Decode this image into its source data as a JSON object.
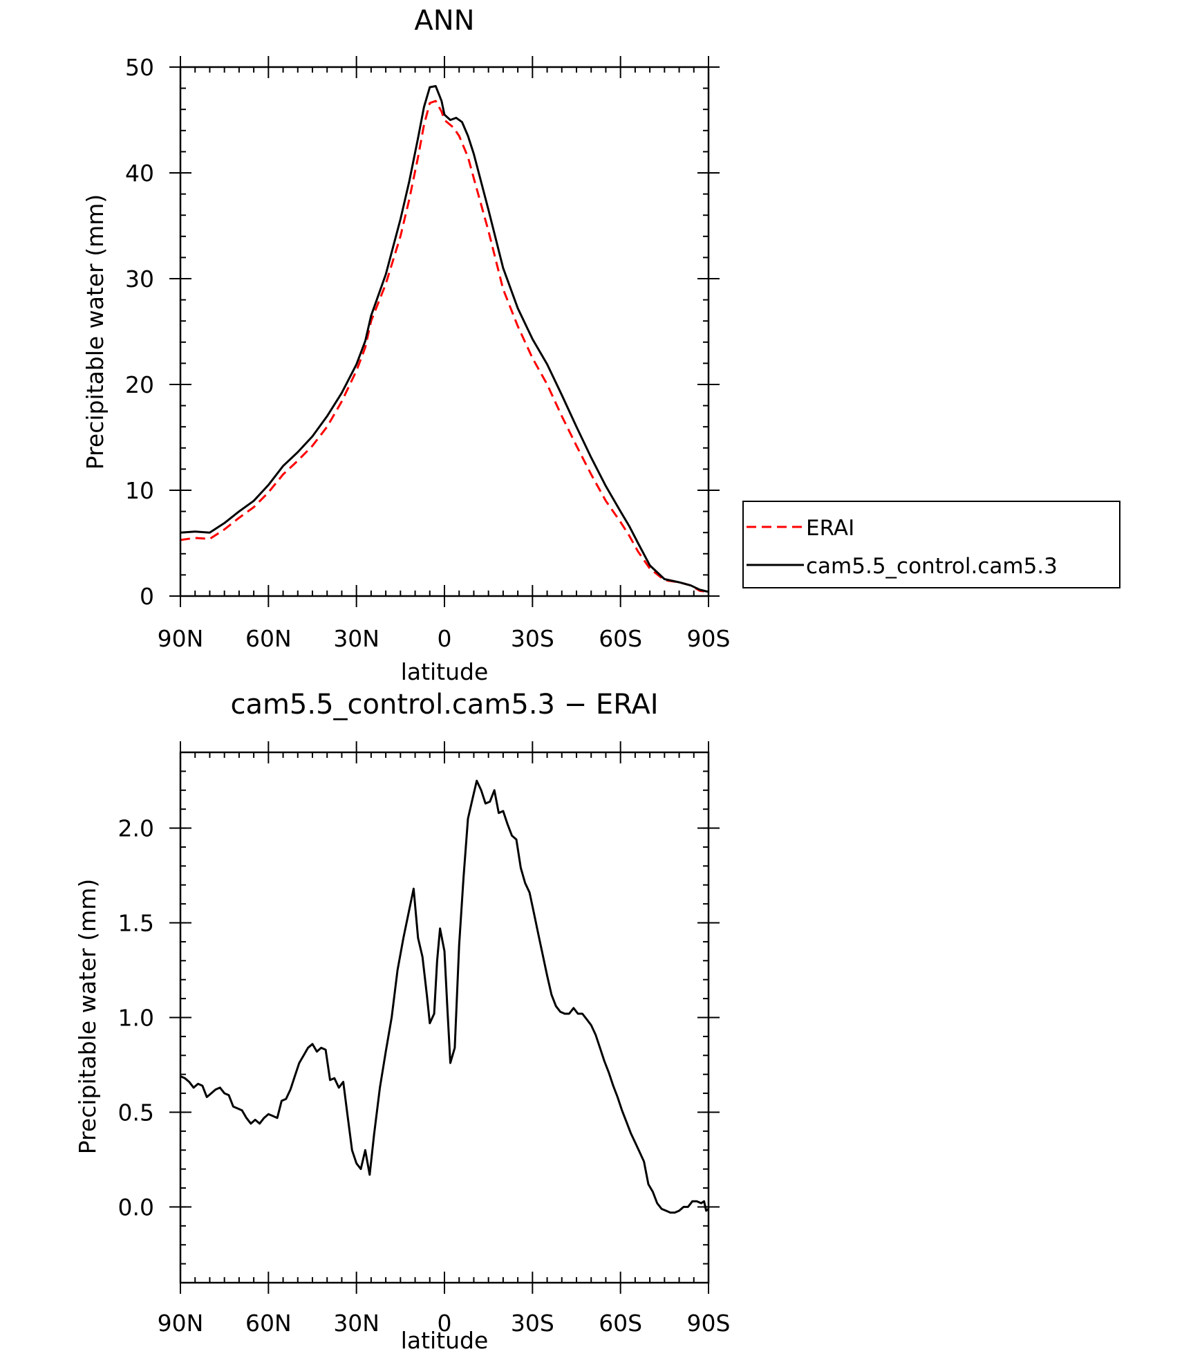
{
  "chart_data": [
    {
      "type": "line",
      "title": "ANN",
      "xlabel": "latitude",
      "ylabel": "Precipitable water (mm)",
      "xlim": [
        90,
        -90
      ],
      "ylim": [
        0,
        50
      ],
      "x_ticks": [
        90,
        60,
        30,
        0,
        -30,
        -60,
        -90
      ],
      "x_tick_labels": [
        "90N",
        "60N",
        "30N",
        "0",
        "30S",
        "60S",
        "90S"
      ],
      "y_ticks": [
        0,
        10,
        20,
        30,
        40,
        50
      ],
      "y_tick_labels": [
        "0",
        "10",
        "20",
        "30",
        "40",
        "50"
      ],
      "legend_position": "right",
      "series": [
        {
          "name": "ERAI",
          "color": "#ff0000",
          "style": "dashed",
          "points": [
            [
              90,
              5.3
            ],
            [
              85,
              5.5
            ],
            [
              80,
              5.4
            ],
            [
              75,
              6.3
            ],
            [
              70,
              7.4
            ],
            [
              65,
              8.4
            ],
            [
              60,
              9.8
            ],
            [
              55,
              11.5
            ],
            [
              50,
              12.8
            ],
            [
              45,
              14.2
            ],
            [
              40,
              16.0
            ],
            [
              35,
              18.4
            ],
            [
              30,
              21.3
            ],
            [
              27,
              23.5
            ],
            [
              25,
              26.0
            ],
            [
              20,
              29.5
            ],
            [
              15,
              34.0
            ],
            [
              12,
              37.5
            ],
            [
              9,
              41.5
            ],
            [
              7,
              44.5
            ],
            [
              5,
              46.6
            ],
            [
              3,
              46.8
            ],
            [
              1,
              45.8
            ],
            [
              0,
              45.0
            ],
            [
              -3,
              44.3
            ],
            [
              -5,
              43.5
            ],
            [
              -8,
              41.5
            ],
            [
              -10,
              39.5
            ],
            [
              -15,
              34.5
            ],
            [
              -20,
              29.0
            ],
            [
              -25,
              25.5
            ],
            [
              -30,
              22.5
            ],
            [
              -35,
              20.0
            ],
            [
              -40,
              17.0
            ],
            [
              -45,
              14.2
            ],
            [
              -50,
              11.5
            ],
            [
              -55,
              9.0
            ],
            [
              -60,
              7.0
            ],
            [
              -63,
              5.7
            ],
            [
              -66,
              4.2
            ],
            [
              -70,
              2.6
            ],
            [
              -75,
              1.5
            ],
            [
              -80,
              1.3
            ],
            [
              -84,
              1.0
            ],
            [
              -87,
              0.5
            ],
            [
              -90,
              0.4
            ]
          ]
        },
        {
          "name": "cam5.5_control.cam5.3",
          "color": "#000000",
          "style": "solid",
          "points": [
            [
              90,
              6.0
            ],
            [
              85,
              6.1
            ],
            [
              80,
              6.0
            ],
            [
              75,
              6.9
            ],
            [
              70,
              8.0
            ],
            [
              65,
              9.0
            ],
            [
              60,
              10.5
            ],
            [
              55,
              12.3
            ],
            [
              50,
              13.6
            ],
            [
              45,
              15.1
            ],
            [
              40,
              17.0
            ],
            [
              35,
              19.2
            ],
            [
              30,
              21.9
            ],
            [
              27,
              24.1
            ],
            [
              25,
              26.5
            ],
            [
              20,
              30.4
            ],
            [
              15,
              35.6
            ],
            [
              12,
              39.2
            ],
            [
              9,
              43.3
            ],
            [
              7,
              46.2
            ],
            [
              5,
              48.1
            ],
            [
              3,
              48.2
            ],
            [
              1,
              46.8
            ],
            [
              0,
              45.5
            ],
            [
              -2,
              45.0
            ],
            [
              -4,
              45.2
            ],
            [
              -6,
              44.8
            ],
            [
              -8,
              43.5
            ],
            [
              -10,
              41.8
            ],
            [
              -15,
              36.5
            ],
            [
              -20,
              31.0
            ],
            [
              -25,
              27.2
            ],
            [
              -30,
              24.3
            ],
            [
              -35,
              21.9
            ],
            [
              -40,
              19.0
            ],
            [
              -45,
              16.0
            ],
            [
              -50,
              13.1
            ],
            [
              -55,
              10.4
            ],
            [
              -60,
              8.0
            ],
            [
              -63,
              6.6
            ],
            [
              -66,
              5.0
            ],
            [
              -70,
              2.9
            ],
            [
              -75,
              1.6
            ],
            [
              -80,
              1.3
            ],
            [
              -84,
              1.0
            ],
            [
              -87,
              0.6
            ],
            [
              -90,
              0.4
            ]
          ]
        }
      ]
    },
    {
      "type": "line",
      "title": "cam5.5_control.cam5.3 − ERAI",
      "xlabel": "latitude",
      "ylabel": "Precipitable water (mm)",
      "xlim": [
        90,
        -90
      ],
      "ylim": [
        -0.4,
        2.4
      ],
      "x_ticks": [
        90,
        60,
        30,
        0,
        -30,
        -60,
        -90
      ],
      "x_tick_labels": [
        "90N",
        "60N",
        "30N",
        "0",
        "30S",
        "60S",
        "90S"
      ],
      "y_ticks": [
        0.0,
        0.5,
        1.0,
        1.5,
        2.0
      ],
      "y_tick_labels": [
        "0.0",
        "0.5",
        "1.0",
        "1.5",
        "2.0"
      ],
      "series": [
        {
          "color": "#000000",
          "style": "solid",
          "points": [
            [
              90,
              0.69
            ],
            [
              88.5,
              0.68
            ],
            [
              87,
              0.66
            ],
            [
              85.5,
              0.63
            ],
            [
              84,
              0.65
            ],
            [
              82.5,
              0.64
            ],
            [
              81,
              0.58
            ],
            [
              79.5,
              0.6
            ],
            [
              78,
              0.62
            ],
            [
              76.5,
              0.63
            ],
            [
              75,
              0.6
            ],
            [
              73.5,
              0.59
            ],
            [
              72,
              0.53
            ],
            [
              70.5,
              0.52
            ],
            [
              69,
              0.51
            ],
            [
              67.5,
              0.47
            ],
            [
              66,
              0.44
            ],
            [
              64.5,
              0.46
            ],
            [
              63,
              0.44
            ],
            [
              61.5,
              0.47
            ],
            [
              60,
              0.49
            ],
            [
              58.5,
              0.48
            ],
            [
              57,
              0.47
            ],
            [
              55.5,
              0.56
            ],
            [
              54,
              0.57
            ],
            [
              52.5,
              0.62
            ],
            [
              51,
              0.69
            ],
            [
              49.5,
              0.76
            ],
            [
              48,
              0.8
            ],
            [
              46.5,
              0.84
            ],
            [
              45,
              0.86
            ],
            [
              43.5,
              0.82
            ],
            [
              42,
              0.84
            ],
            [
              40.5,
              0.83
            ],
            [
              39,
              0.67
            ],
            [
              37.5,
              0.68
            ],
            [
              36,
              0.63
            ],
            [
              34.5,
              0.66
            ],
            [
              33,
              0.48
            ],
            [
              31.5,
              0.3
            ],
            [
              30,
              0.23
            ],
            [
              28.5,
              0.2
            ],
            [
              27,
              0.3
            ],
            [
              25.5,
              0.17
            ],
            [
              24,
              0.38
            ],
            [
              22,
              0.63
            ],
            [
              20,
              0.82
            ],
            [
              18,
              1.0
            ],
            [
              16,
              1.25
            ],
            [
              14,
              1.42
            ],
            [
              12,
              1.57
            ],
            [
              10.5,
              1.68
            ],
            [
              9,
              1.42
            ],
            [
              7.5,
              1.32
            ],
            [
              6,
              1.12
            ],
            [
              5,
              0.97
            ],
            [
              3.5,
              1.02
            ],
            [
              2.5,
              1.3
            ],
            [
              1.5,
              1.47
            ],
            [
              0,
              1.35
            ],
            [
              -1,
              1.05
            ],
            [
              -2,
              0.76
            ],
            [
              -3.5,
              0.84
            ],
            [
              -5,
              1.38
            ],
            [
              -6.5,
              1.74
            ],
            [
              -8,
              2.05
            ],
            [
              -9.5,
              2.15
            ],
            [
              -11,
              2.25
            ],
            [
              -12.5,
              2.2
            ],
            [
              -14,
              2.13
            ],
            [
              -15.5,
              2.14
            ],
            [
              -17,
              2.2
            ],
            [
              -18.5,
              2.08
            ],
            [
              -20,
              2.09
            ],
            [
              -21.5,
              2.02
            ],
            [
              -23,
              1.96
            ],
            [
              -24.5,
              1.94
            ],
            [
              -26,
              1.79
            ],
            [
              -27.5,
              1.71
            ],
            [
              -29,
              1.66
            ],
            [
              -30.5,
              1.55
            ],
            [
              -32,
              1.44
            ],
            [
              -33.5,
              1.33
            ],
            [
              -35,
              1.22
            ],
            [
              -36.5,
              1.12
            ],
            [
              -38,
              1.06
            ],
            [
              -39.5,
              1.03
            ],
            [
              -41,
              1.02
            ],
            [
              -42.5,
              1.02
            ],
            [
              -44,
              1.05
            ],
            [
              -45.5,
              1.02
            ],
            [
              -47,
              1.02
            ],
            [
              -48.5,
              0.99
            ],
            [
              -50,
              0.96
            ],
            [
              -51.5,
              0.91
            ],
            [
              -53,
              0.84
            ],
            [
              -54.5,
              0.77
            ],
            [
              -56,
              0.71
            ],
            [
              -57.5,
              0.64
            ],
            [
              -59,
              0.58
            ],
            [
              -60.5,
              0.51
            ],
            [
              -62,
              0.45
            ],
            [
              -63.5,
              0.39
            ],
            [
              -65,
              0.34
            ],
            [
              -66.5,
              0.29
            ],
            [
              -68,
              0.24
            ],
            [
              -69.5,
              0.12
            ],
            [
              -71,
              0.08
            ],
            [
              -72.5,
              0.02
            ],
            [
              -74,
              -0.01
            ],
            [
              -75.5,
              -0.02
            ],
            [
              -77,
              -0.03
            ],
            [
              -78.5,
              -0.03
            ],
            [
              -80,
              -0.02
            ],
            [
              -81.5,
              0.0
            ],
            [
              -83,
              0.0
            ],
            [
              -84.5,
              0.03
            ],
            [
              -86,
              0.03
            ],
            [
              -87.5,
              0.02
            ],
            [
              -88.5,
              0.03
            ],
            [
              -89.2,
              -0.02
            ],
            [
              -90,
              -0.01
            ]
          ]
        }
      ]
    }
  ]
}
